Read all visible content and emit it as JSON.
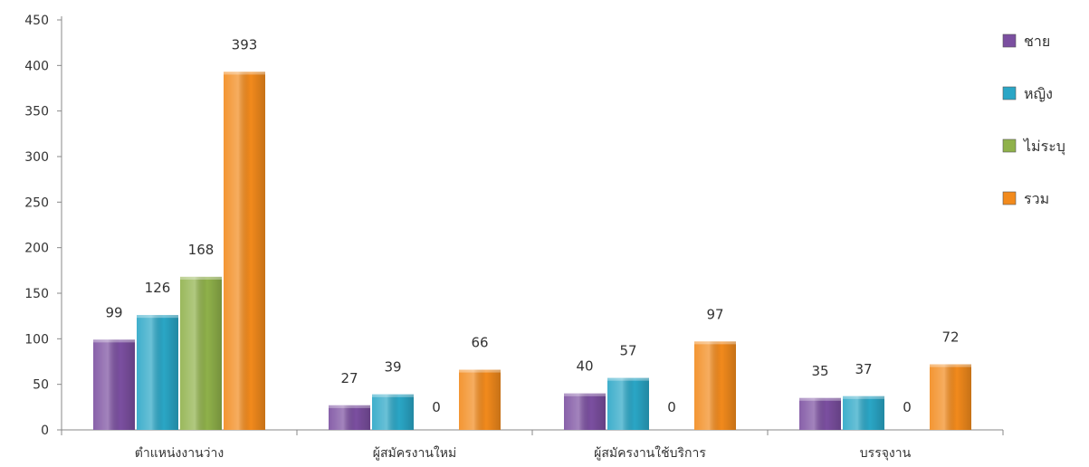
{
  "chart_data": {
    "type": "bar",
    "categories": [
      "ตำแหน่งงานว่าง",
      "ผู้สมัครงานใหม่",
      "ผู้สมัครงานใช้บริการ",
      "บรรจุงาน"
    ],
    "series": [
      {
        "name": "ชาย",
        "values": [
          99,
          27,
          40,
          35
        ],
        "color": "#7b4fa0"
      },
      {
        "name": "หญิง",
        "values": [
          126,
          39,
          57,
          37
        ],
        "color": "#2aa6c6"
      },
      {
        "name": "ไม่ระบุ",
        "values": [
          168,
          0,
          0,
          0
        ],
        "color": "#8fb14a"
      },
      {
        "name": "รวม",
        "values": [
          393,
          66,
          97,
          72
        ],
        "color": "#f28a1c"
      }
    ],
    "ylim": [
      0,
      450
    ],
    "yticks": [
      0,
      50,
      100,
      150,
      200,
      250,
      300,
      350,
      400,
      450
    ],
    "grid": false,
    "legend_position": "right",
    "data_labels": true
  }
}
